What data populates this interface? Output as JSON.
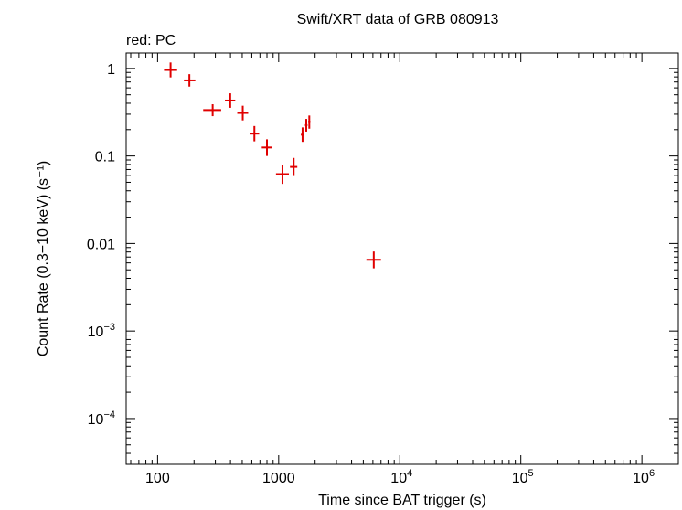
{
  "chart_data": {
    "type": "scatter",
    "title": "Swift/XRT data of GRB 080913",
    "subtitle": "red: PC",
    "xlabel": "Time since BAT trigger (s)",
    "ylabel": "Count Rate (0.3−10 keV) (s⁻¹)",
    "x_scale": "log",
    "y_scale": "log",
    "xlim": [
      55,
      2000000
    ],
    "ylim": [
      3e-05,
      1.5
    ],
    "grid": false,
    "x_ticks": [
      {
        "value": 100,
        "base": "100",
        "exp": ""
      },
      {
        "value": 1000,
        "base": "1000",
        "exp": ""
      },
      {
        "value": 10000,
        "base": "10",
        "exp": "4"
      },
      {
        "value": 100000,
        "base": "10",
        "exp": "5"
      },
      {
        "value": 1000000,
        "base": "10",
        "exp": "6"
      }
    ],
    "y_ticks": [
      {
        "value": 1,
        "base": "1",
        "exp": ""
      },
      {
        "value": 0.1,
        "base": "0.1",
        "exp": ""
      },
      {
        "value": 0.01,
        "base": "0.01",
        "exp": ""
      },
      {
        "value": 0.001,
        "base": "10",
        "exp": "−3"
      },
      {
        "value": 0.0001,
        "base": "10",
        "exp": "−4"
      }
    ],
    "series": [
      {
        "color": "#e00000",
        "points": [
          {
            "x": 128,
            "y": 0.96,
            "xerr": [
              113,
              145
            ],
            "yerr": [
              0.79,
              1.17
            ]
          },
          {
            "x": 183,
            "y": 0.73,
            "xerr": [
              165,
              205
            ],
            "yerr": [
              0.62,
              0.86
            ]
          },
          {
            "x": 285,
            "y": 0.335,
            "xerr": [
              238,
              335
            ],
            "yerr": [
              0.285,
              0.39
            ]
          },
          {
            "x": 398,
            "y": 0.43,
            "xerr": [
              360,
              438
            ],
            "yerr": [
              0.355,
              0.52
            ]
          },
          {
            "x": 505,
            "y": 0.31,
            "xerr": [
              455,
              560
            ],
            "yerr": [
              0.255,
              0.375
            ]
          },
          {
            "x": 630,
            "y": 0.18,
            "xerr": [
              575,
              690
            ],
            "yerr": [
              0.147,
              0.22
            ]
          },
          {
            "x": 800,
            "y": 0.125,
            "xerr": [
              725,
              885
            ],
            "yerr": [
              0.1,
              0.155
            ]
          },
          {
            "x": 1075,
            "y": 0.062,
            "xerr": [
              950,
              1215
            ],
            "yerr": [
              0.048,
              0.079
            ]
          },
          {
            "x": 1330,
            "y": 0.075,
            "xerr": [
              1240,
              1425
            ],
            "yerr": [
              0.059,
              0.095
            ]
          },
          {
            "x": 1575,
            "y": 0.175,
            "xerr": [
              1525,
              1625
            ],
            "yerr": [
              0.145,
              0.212
            ]
          },
          {
            "x": 1690,
            "y": 0.225,
            "xerr": [
              1650,
              1730
            ],
            "yerr": [
              0.19,
              0.265
            ]
          },
          {
            "x": 1790,
            "y": 0.245,
            "xerr": [
              1750,
              1830
            ],
            "yerr": [
              0.205,
              0.29
            ]
          },
          {
            "x": 6100,
            "y": 0.0065,
            "xerr": [
              5300,
              7000
            ],
            "yerr": [
              0.0052,
              0.0081
            ]
          }
        ]
      }
    ]
  }
}
